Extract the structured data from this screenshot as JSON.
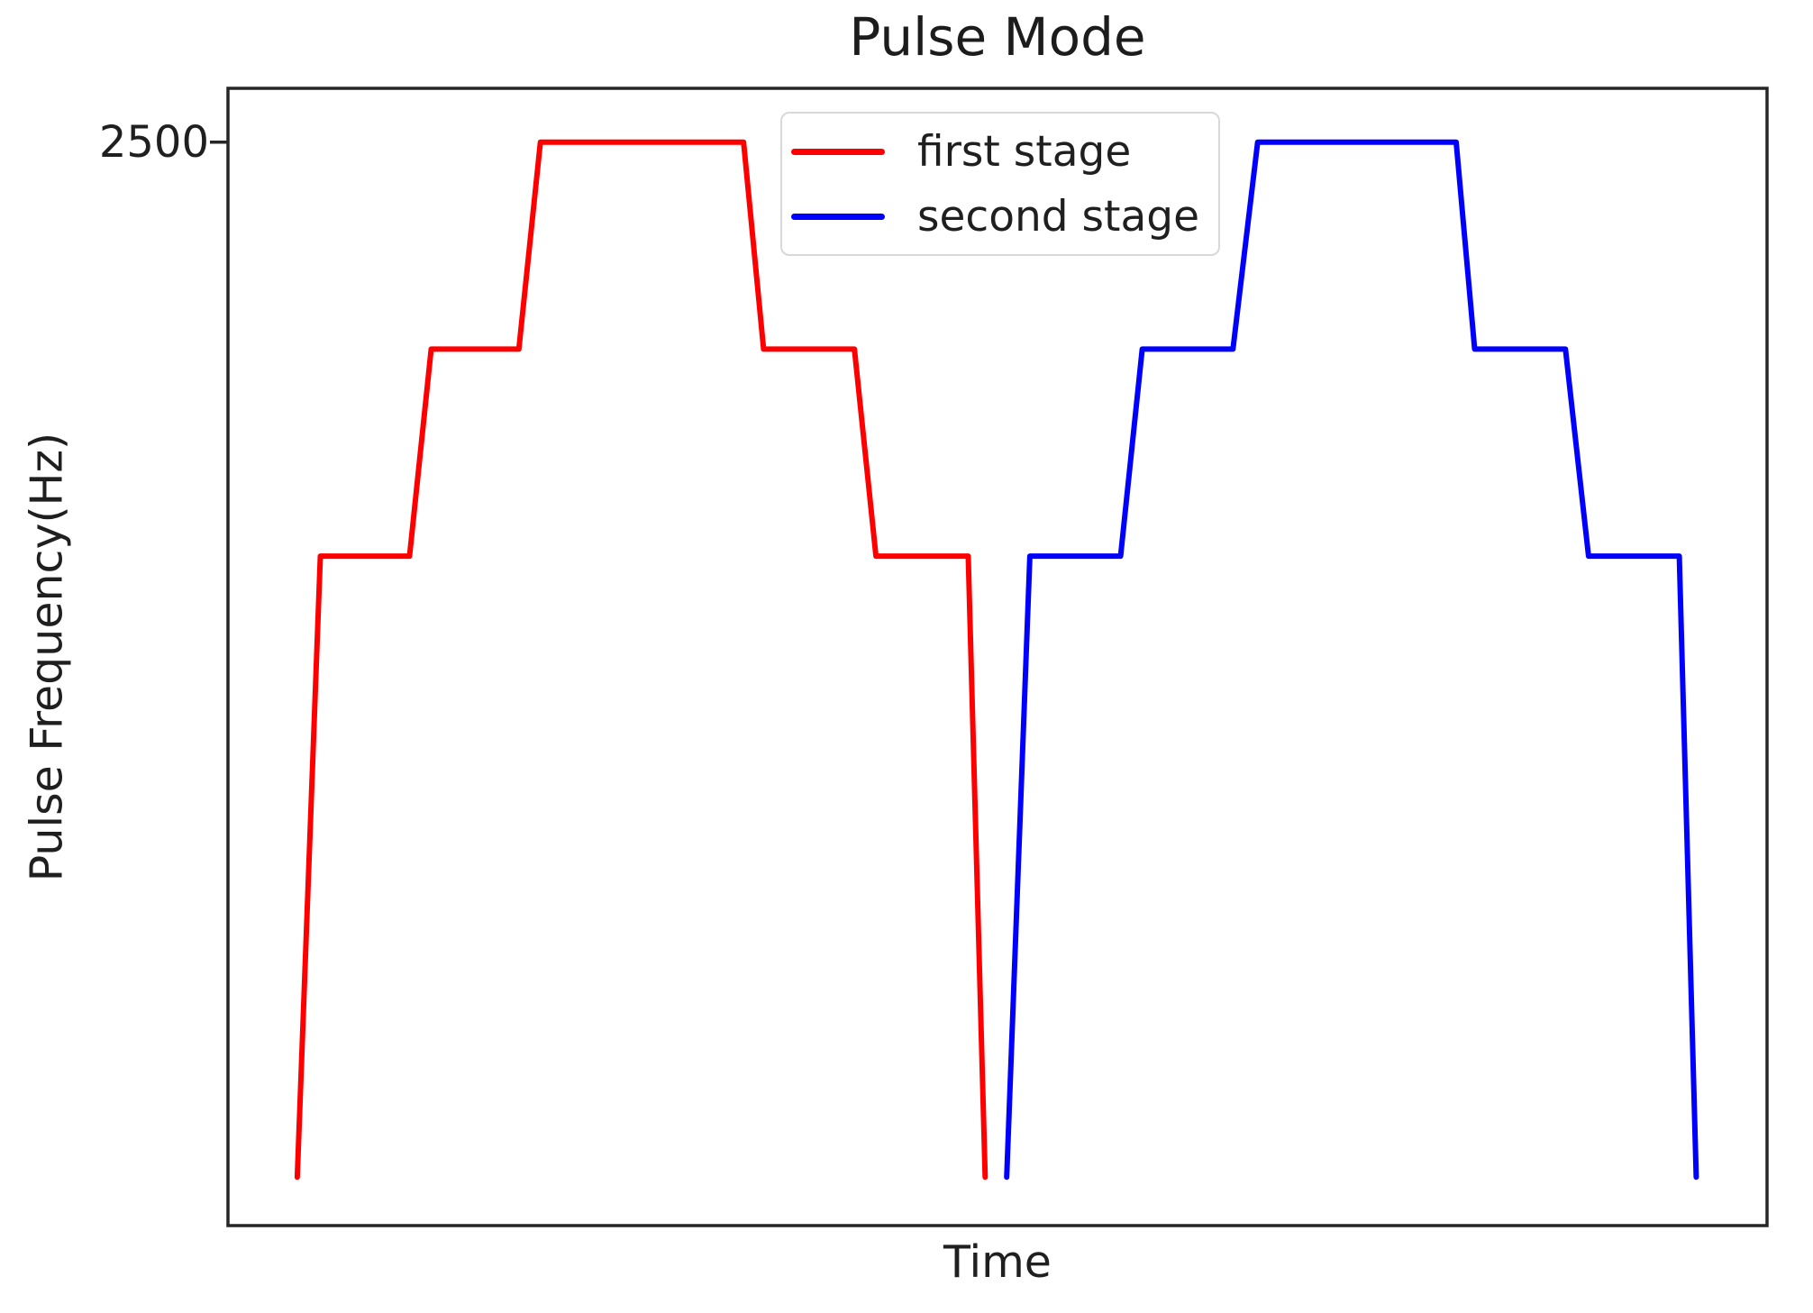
{
  "figure": {
    "title": "Pulse Mode",
    "xlabel": "Time",
    "ylabel": "Pulse Frequency(Hz)"
  },
  "chart_data": {
    "type": "line",
    "title": "Pulse Mode",
    "xlabel": "Time",
    "ylabel": "Pulse Frequency(Hz)",
    "xlim": [
      0,
      100
    ],
    "ylim": [
      -117,
      2630
    ],
    "grid": false,
    "legend_position": "upper center",
    "yticks": [
      {
        "value": 2500,
        "label": "2500"
      }
    ],
    "xticks": [],
    "series": [
      {
        "name": "first stage",
        "color": "#ff0000",
        "points": [
          [
            4.5,
            0
          ],
          [
            6.0,
            1500
          ],
          [
            11.8,
            1500
          ],
          [
            13.2,
            2000
          ],
          [
            18.9,
            2000
          ],
          [
            20.3,
            2500
          ],
          [
            33.5,
            2500
          ],
          [
            34.8,
            2000
          ],
          [
            40.7,
            2000
          ],
          [
            42.1,
            1500
          ],
          [
            48.1,
            1500
          ],
          [
            49.2,
            0
          ]
        ]
      },
      {
        "name": "second stage",
        "color": "#0000ff",
        "points": [
          [
            50.6,
            0
          ],
          [
            52.1,
            1500
          ],
          [
            58.0,
            1500
          ],
          [
            59.4,
            2000
          ],
          [
            65.3,
            2000
          ],
          [
            66.9,
            2500
          ],
          [
            79.8,
            2500
          ],
          [
            81.0,
            2000
          ],
          [
            86.9,
            2000
          ],
          [
            88.4,
            1500
          ],
          [
            94.3,
            1500
          ],
          [
            95.4,
            0
          ]
        ]
      }
    ]
  }
}
